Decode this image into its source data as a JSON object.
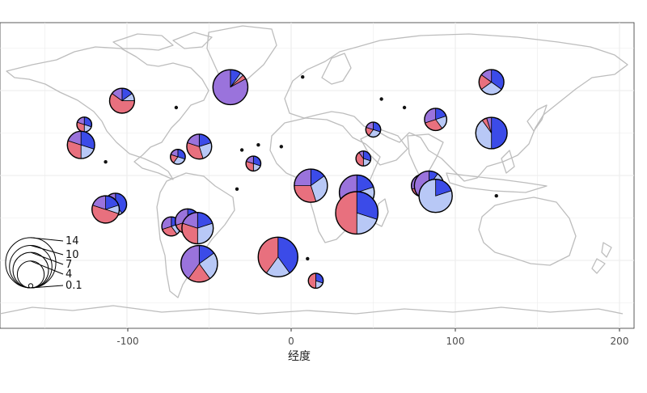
{
  "chart_data": {
    "type": "scatter",
    "subtype": "map-pie",
    "xlabel": "经度",
    "x_ticks": [
      "-100",
      "0",
      "100",
      "200"
    ],
    "xlim": [
      -180,
      200
    ],
    "ylim": [
      -90,
      90
    ],
    "grid": true,
    "colors": {
      "panel": "#ffffff",
      "grid": "#ebebeb",
      "land": "#bdbdbd",
      "slice": [
        "#3b4be8",
        "#b8c8f6",
        "#e8707e",
        "#9a73dc"
      ],
      "outline": "#000000"
    },
    "size_legend": {
      "placement": "bottom-left",
      "labels": [
        "14",
        "10",
        "7",
        "4",
        "0.1"
      ],
      "values": [
        14,
        10,
        7,
        4,
        0.1
      ]
    },
    "sites": [
      {
        "lon": 122,
        "lat": 55,
        "size": 4,
        "fractions": [
          0.35,
          0.3,
          0.2,
          0.15
        ]
      },
      {
        "lon": -37,
        "lat": 52,
        "size": 9,
        "fractions": [
          0.1,
          0.03,
          0.04,
          0.83
        ]
      },
      {
        "lon": -103,
        "lat": 44,
        "size": 4,
        "fractions": [
          0.15,
          0.1,
          0.6,
          0.15
        ]
      },
      {
        "lon": 88,
        "lat": 33,
        "size": 3,
        "fractions": [
          0.2,
          0.2,
          0.3,
          0.3
        ]
      },
      {
        "lon": 122,
        "lat": 25,
        "size": 7,
        "fractions": [
          0.5,
          0.4,
          0.05,
          0.05
        ]
      },
      {
        "lon": -126,
        "lat": 30,
        "size": 1,
        "fractions": [
          0.3,
          0.2,
          0.3,
          0.2
        ]
      },
      {
        "lon": -128,
        "lat": 18,
        "size": 5,
        "fractions": [
          0.3,
          0.2,
          0.3,
          0.2
        ]
      },
      {
        "lon": -56,
        "lat": 17,
        "size": 4,
        "fractions": [
          0.2,
          0.25,
          0.35,
          0.2
        ]
      },
      {
        "lon": -69,
        "lat": 11,
        "size": 1,
        "fractions": [
          0.3,
          0.3,
          0.2,
          0.2
        ]
      },
      {
        "lon": 50,
        "lat": 27,
        "size": 1,
        "fractions": [
          0.3,
          0.3,
          0.2,
          0.2
        ]
      },
      {
        "lon": 44,
        "lat": 10,
        "size": 1,
        "fractions": [
          0.3,
          0.2,
          0.4,
          0.1
        ]
      },
      {
        "lon": -23,
        "lat": 7,
        "size": 1,
        "fractions": [
          0.3,
          0.2,
          0.3,
          0.2
        ]
      },
      {
        "lon": 12,
        "lat": -6,
        "size": 8,
        "fractions": [
          0.15,
          0.3,
          0.3,
          0.25
        ]
      },
      {
        "lon": 40,
        "lat": -10,
        "size": 9,
        "fractions": [
          0.2,
          0.2,
          0.1,
          0.5
        ]
      },
      {
        "lon": 40,
        "lat": -22,
        "size": 14,
        "fractions": [
          0.3,
          0.2,
          0.5,
          0.0
        ]
      },
      {
        "lon": 80,
        "lat": -6,
        "size": 3,
        "fractions": [
          0.3,
          0.2,
          0.2,
          0.3
        ]
      },
      {
        "lon": 84,
        "lat": -6,
        "size": 6,
        "fractions": [
          0.1,
          0.2,
          0.3,
          0.4
        ]
      },
      {
        "lon": 88,
        "lat": -12,
        "size": 8,
        "fractions": [
          0.2,
          0.8,
          0.0,
          0.0
        ]
      },
      {
        "lon": -107,
        "lat": -17,
        "size": 3,
        "fractions": [
          0.4,
          0.3,
          0.2,
          0.1
        ]
      },
      {
        "lon": -113,
        "lat": -20,
        "size": 5,
        "fractions": [
          0.2,
          0.1,
          0.5,
          0.2
        ]
      },
      {
        "lon": -73,
        "lat": -30,
        "size": 2,
        "fractions": [
          0.2,
          0.2,
          0.3,
          0.3
        ]
      },
      {
        "lon": -63,
        "lat": -27,
        "size": 4,
        "fractions": [
          0.2,
          0.3,
          0.2,
          0.3
        ]
      },
      {
        "lon": -57,
        "lat": -31,
        "size": 7,
        "fractions": [
          0.2,
          0.3,
          0.3,
          0.2
        ]
      },
      {
        "lon": -56,
        "lat": -52,
        "size": 10,
        "fractions": [
          0.15,
          0.25,
          0.2,
          0.4
        ]
      },
      {
        "lon": -8,
        "lat": -48,
        "size": 12,
        "fractions": [
          0.4,
          0.2,
          0.4,
          0.0
        ]
      },
      {
        "lon": 15,
        "lat": -62,
        "size": 1,
        "fractions": [
          0.3,
          0.2,
          0.5,
          0.0
        ]
      }
    ],
    "point_sites": [
      {
        "lon": 7,
        "lat": 58
      },
      {
        "lon": 55,
        "lat": 45
      },
      {
        "lon": 69,
        "lat": 40
      },
      {
        "lon": -70,
        "lat": 40
      },
      {
        "lon": -20,
        "lat": 18
      },
      {
        "lon": -6,
        "lat": 17
      },
      {
        "lon": -30,
        "lat": 15
      },
      {
        "lon": -113,
        "lat": 8
      },
      {
        "lon": -33,
        "lat": -8
      },
      {
        "lon": 10,
        "lat": -49
      },
      {
        "lon": 125,
        "lat": -12
      }
    ]
  }
}
